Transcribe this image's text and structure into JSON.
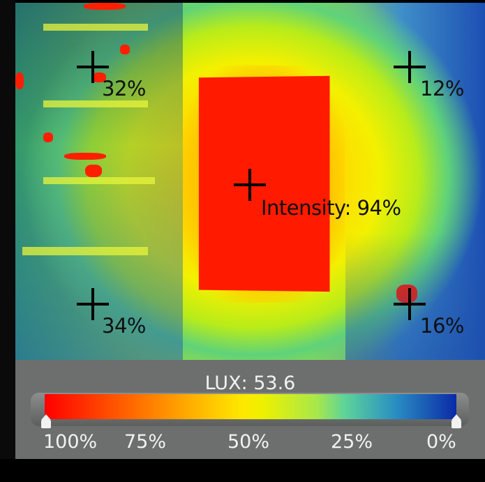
{
  "markers": [
    {
      "id": "top-left",
      "label": "32%"
    },
    {
      "id": "top-right",
      "label": "12%"
    },
    {
      "id": "center",
      "label": "Intensity:  94%"
    },
    {
      "id": "bottom-left",
      "label": "34%"
    },
    {
      "id": "bottom-right",
      "label": "16%"
    }
  ],
  "panel": {
    "lux_label": "LUX:  53.6",
    "scale_ticks": [
      "100%",
      "75%",
      "50%",
      "25%",
      "0%"
    ],
    "colors": {
      "hot": "#ff0000",
      "mid": "#ffe800",
      "cool": "#5dd39a",
      "cold": "#0b2aa8"
    }
  },
  "icons": {
    "marker": "crosshair-icon",
    "handle": "slider-handle-icon"
  }
}
